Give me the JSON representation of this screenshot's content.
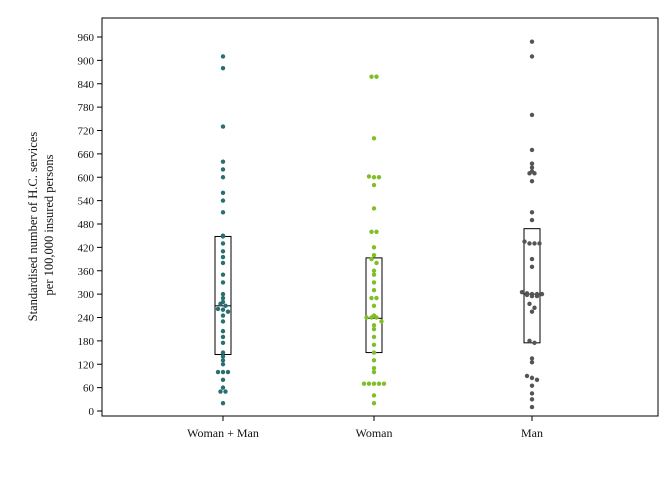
{
  "chart_data": {
    "type": "scatter",
    "title": "",
    "ylabel_lines": [
      "Standardised number of H.C. services",
      "per 100,000 insured persons"
    ],
    "ylim": [
      0,
      960
    ],
    "yticks": [
      0,
      60,
      120,
      180,
      240,
      300,
      360,
      420,
      480,
      540,
      600,
      660,
      720,
      780,
      840,
      900,
      960
    ],
    "grid": false,
    "legend": "none",
    "categories": [
      "Woman + Man",
      "Woman",
      "Man"
    ],
    "series": [
      {
        "category": "Woman + Man",
        "color": "#2a6f6f",
        "box": {
          "q1": 145,
          "median": 270,
          "q3": 448
        },
        "points": [
          910,
          880,
          730,
          640,
          620,
          600,
          560,
          540,
          510,
          450,
          448,
          430,
          410,
          395,
          380,
          350,
          330,
          300,
          290,
          280,
          275,
          270,
          262,
          260,
          255,
          245,
          230,
          205,
          190,
          175,
          150,
          140,
          130,
          120,
          100,
          100,
          100,
          80,
          60,
          50,
          50,
          20
        ]
      },
      {
        "category": "Woman",
        "color": "#7fbf26",
        "box": {
          "q1": 150,
          "median": 238,
          "q3": 393
        },
        "points": [
          858,
          858,
          700,
          602,
          600,
          600,
          580,
          520,
          460,
          460,
          420,
          400,
          390,
          380,
          360,
          350,
          330,
          310,
          290,
          290,
          270,
          245,
          240,
          240,
          240,
          230,
          220,
          210,
          190,
          170,
          150,
          130,
          110,
          100,
          70,
          70,
          70,
          70,
          70,
          40,
          20
        ]
      },
      {
        "category": "Man",
        "color": "#555555",
        "box": {
          "q1": 175,
          "median": 300,
          "q3": 468
        },
        "points": [
          948,
          910,
          760,
          670,
          635,
          625,
          615,
          610,
          610,
          590,
          510,
          490,
          435,
          430,
          430,
          430,
          390,
          370,
          305,
          302,
          300,
          300,
          300,
          298,
          295,
          295,
          275,
          265,
          255,
          180,
          175,
          135,
          125,
          90,
          85,
          80,
          65,
          45,
          30,
          10
        ]
      }
    ]
  }
}
